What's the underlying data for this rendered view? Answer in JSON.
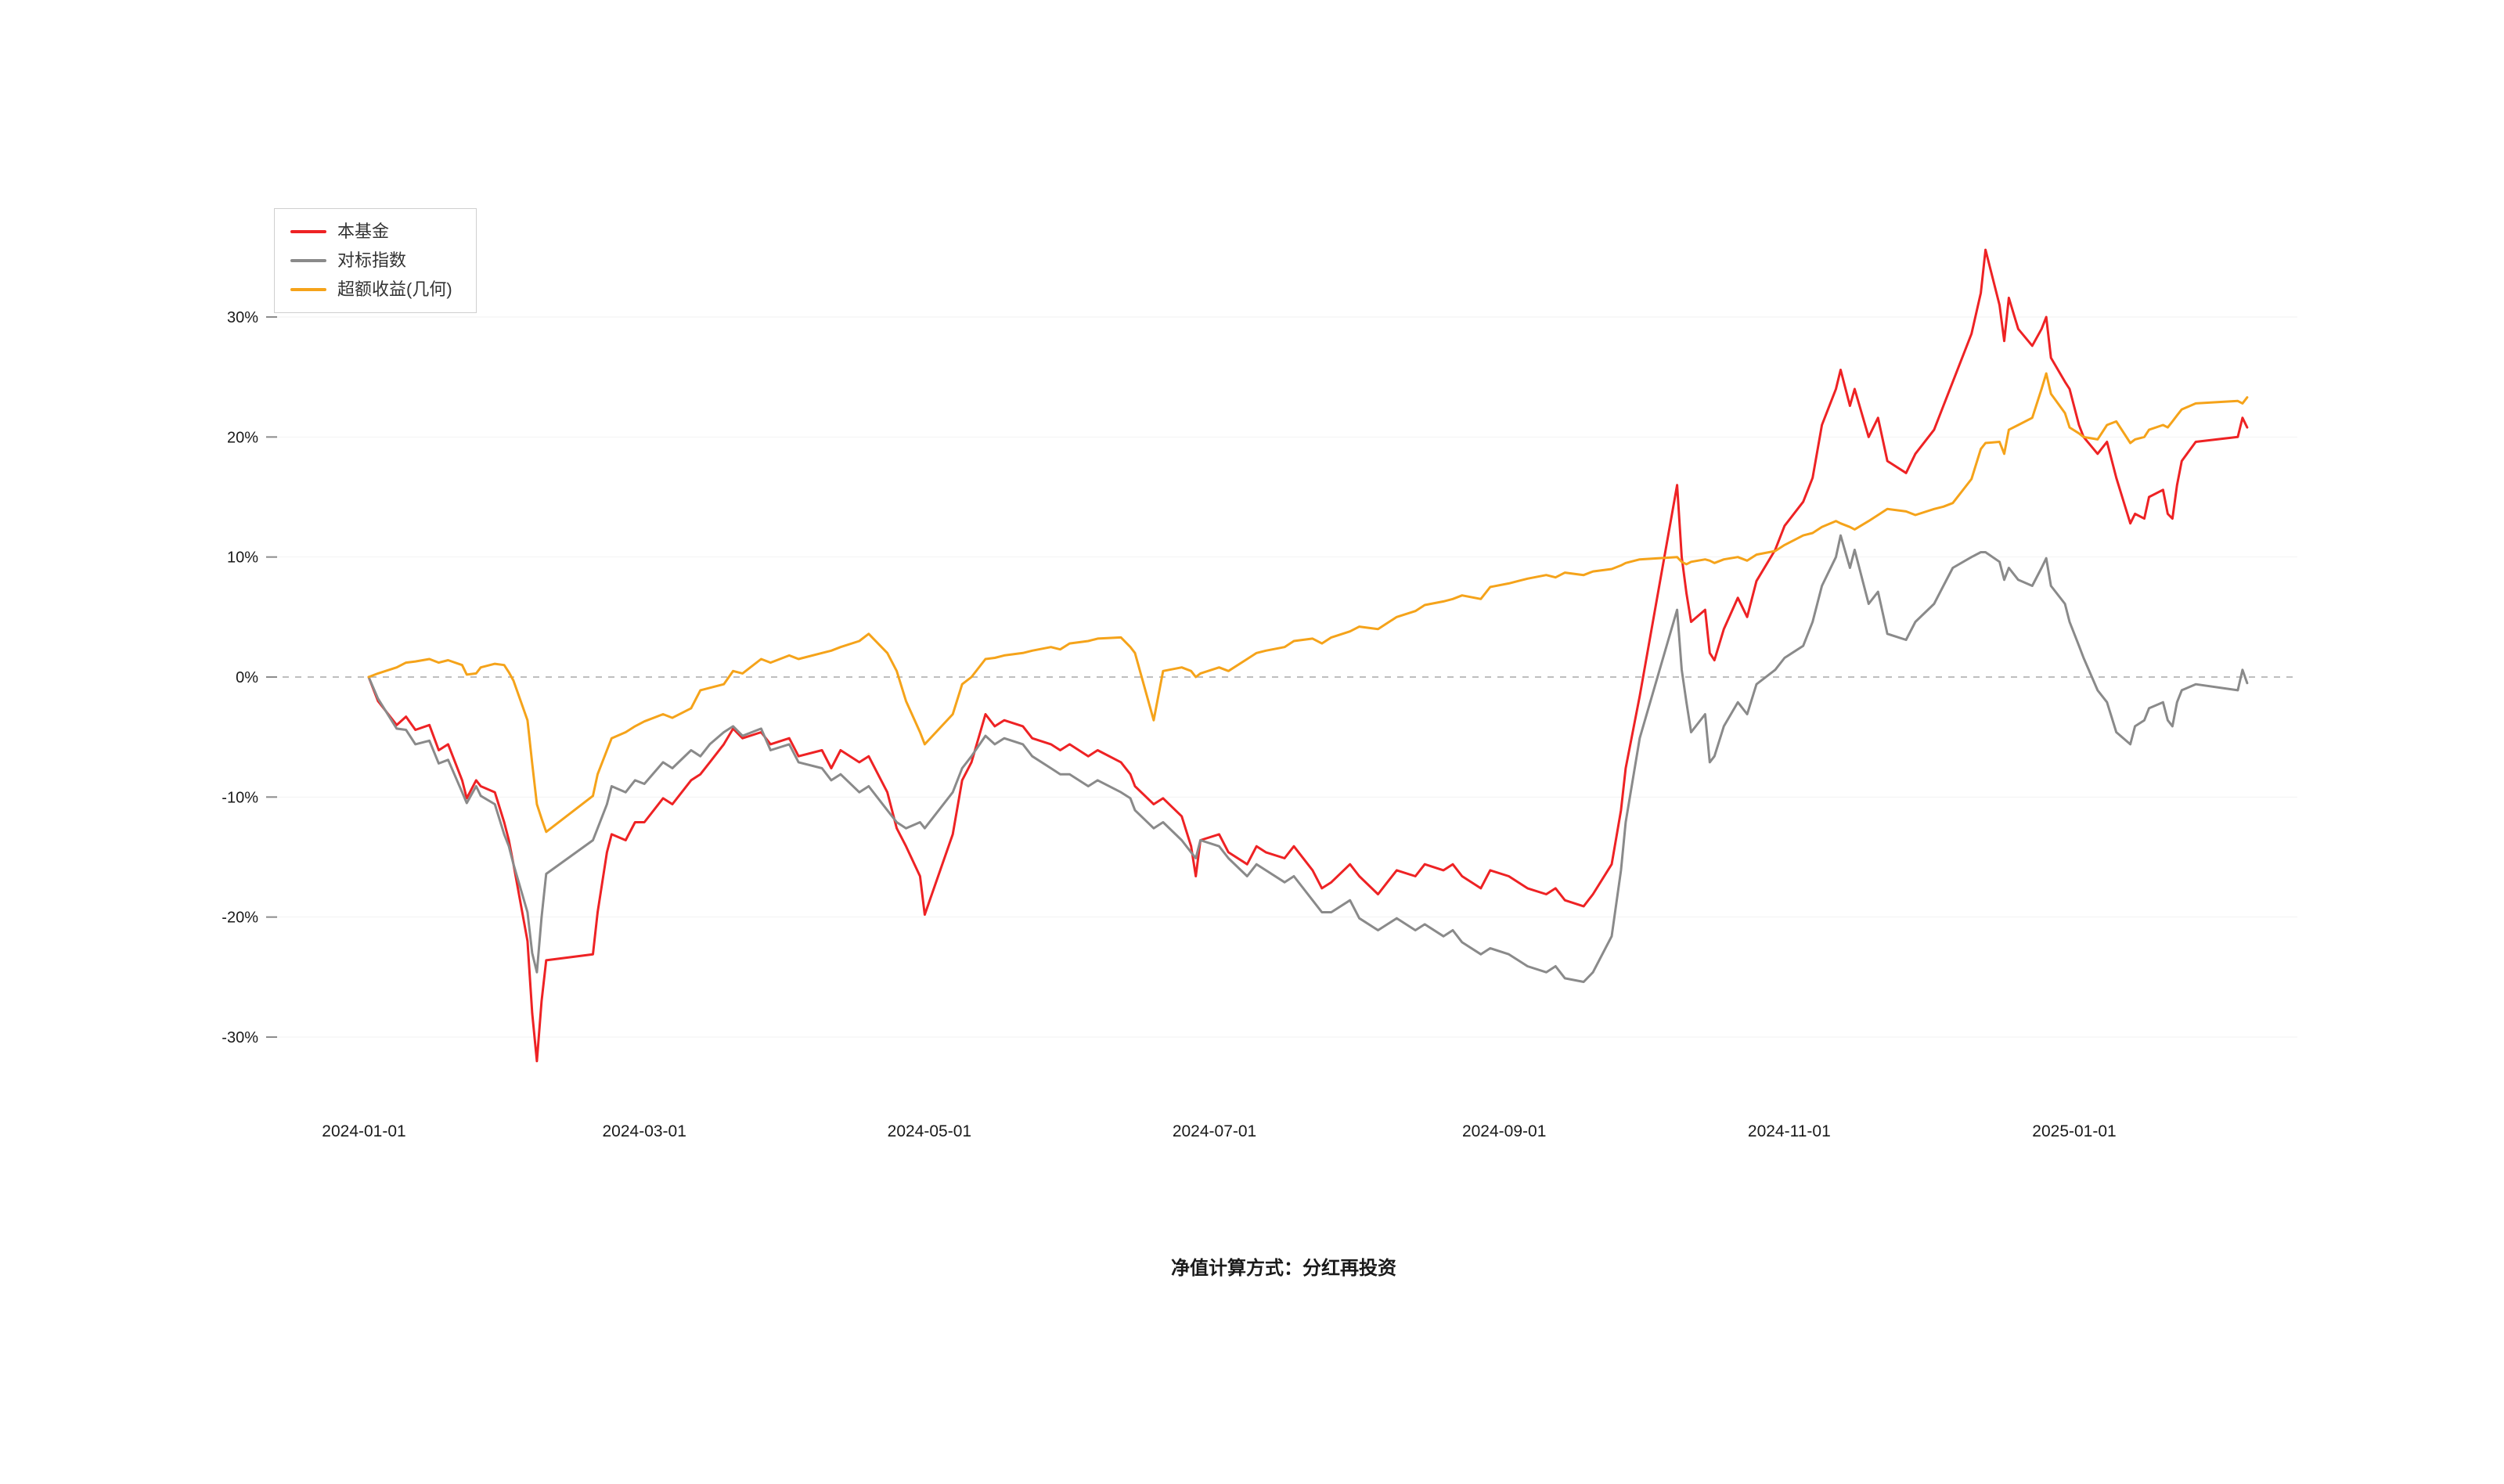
{
  "footer": {
    "note": "净值计算方式：分红再投资"
  },
  "chart_data": {
    "type": "line",
    "title": "",
    "xlabel": "",
    "ylabel": "",
    "legend_position": "top-left",
    "grid": "horizontal-light",
    "zero_line": "dashed-gray",
    "background": "#ffffff",
    "ylim": [
      -35,
      38
    ],
    "y_ticks": [
      30,
      20,
      10,
      0,
      -10,
      -20,
      -30
    ],
    "y_tick_labels": [
      "30%",
      "20%",
      "10%",
      "0%",
      "-10%",
      "-20%",
      "-30%"
    ],
    "x_ticks": [
      "2024-01-01",
      "2024-03-01",
      "2024-05-01",
      "2024-07-01",
      "2024-09-01",
      "2024-11-01",
      "2025-01-01"
    ],
    "dates": [
      "2024-01-02",
      "2024-01-04",
      "2024-01-08",
      "2024-01-10",
      "2024-01-12",
      "2024-01-15",
      "2024-01-17",
      "2024-01-19",
      "2024-01-22",
      "2024-01-23",
      "2024-01-25",
      "2024-01-26",
      "2024-01-29",
      "2024-01-31",
      "2024-02-01",
      "2024-02-02",
      "2024-02-05",
      "2024-02-06",
      "2024-02-07",
      "2024-02-08",
      "2024-02-09",
      "2024-02-19",
      "2024-02-20",
      "2024-02-22",
      "2024-02-23",
      "2024-02-26",
      "2024-02-28",
      "2024-03-01",
      "2024-03-05",
      "2024-03-07",
      "2024-03-11",
      "2024-03-13",
      "2024-03-15",
      "2024-03-18",
      "2024-03-20",
      "2024-03-22",
      "2024-03-26",
      "2024-03-28",
      "2024-04-01",
      "2024-04-03",
      "2024-04-08",
      "2024-04-10",
      "2024-04-12",
      "2024-04-16",
      "2024-04-18",
      "2024-04-22",
      "2024-04-24",
      "2024-04-26",
      "2024-04-29",
      "2024-04-30",
      "2024-05-06",
      "2024-05-08",
      "2024-05-10",
      "2024-05-13",
      "2024-05-15",
      "2024-05-17",
      "2024-05-21",
      "2024-05-23",
      "2024-05-27",
      "2024-05-29",
      "2024-05-31",
      "2024-06-04",
      "2024-06-06",
      "2024-06-11",
      "2024-06-13",
      "2024-06-14",
      "2024-06-18",
      "2024-06-20",
      "2024-06-24",
      "2024-06-26",
      "2024-06-27",
      "2024-06-28",
      "2024-07-02",
      "2024-07-04",
      "2024-07-08",
      "2024-07-10",
      "2024-07-12",
      "2024-07-16",
      "2024-07-18",
      "2024-07-22",
      "2024-07-24",
      "2024-07-26",
      "2024-07-30",
      "2024-08-01",
      "2024-08-05",
      "2024-08-07",
      "2024-08-09",
      "2024-08-13",
      "2024-08-15",
      "2024-08-19",
      "2024-08-21",
      "2024-08-23",
      "2024-08-27",
      "2024-08-29",
      "2024-09-02",
      "2024-09-04",
      "2024-09-06",
      "2024-09-10",
      "2024-09-12",
      "2024-09-14",
      "2024-09-18",
      "2024-09-20",
      "2024-09-24",
      "2024-09-26",
      "2024-09-27",
      "2024-09-30",
      "2024-10-08",
      "2024-10-09",
      "2024-10-10",
      "2024-10-11",
      "2024-10-14",
      "2024-10-15",
      "2024-10-16",
      "2024-10-18",
      "2024-10-21",
      "2024-10-23",
      "2024-10-25",
      "2024-10-29",
      "2024-10-31",
      "2024-11-04",
      "2024-11-06",
      "2024-11-08",
      "2024-11-11",
      "2024-11-12",
      "2024-11-14",
      "2024-11-15",
      "2024-11-18",
      "2024-11-20",
      "2024-11-22",
      "2024-11-26",
      "2024-11-28",
      "2024-12-02",
      "2024-12-04",
      "2024-12-06",
      "2024-12-10",
      "2024-12-12",
      "2024-12-13",
      "2024-12-16",
      "2024-12-17",
      "2024-12-18",
      "2024-12-20",
      "2024-12-23",
      "2024-12-25",
      "2024-12-26",
      "2024-12-27",
      "2024-12-30",
      "2024-12-31",
      "2025-01-02",
      "2025-01-03",
      "2025-01-06",
      "2025-01-08",
      "2025-01-10",
      "2025-01-13",
      "2025-01-14",
      "2025-01-16",
      "2025-01-17",
      "2025-01-20",
      "2025-01-21",
      "2025-01-22",
      "2025-01-23",
      "2025-01-24",
      "2025-01-27",
      "2025-02-05",
      "2025-02-06",
      "2025-02-07"
    ],
    "series": [
      {
        "name": "本基金",
        "color": "#ee2224",
        "values": [
          0,
          -2.0,
          -4.0,
          -3.3,
          -4.4,
          -4.0,
          -6.1,
          -5.6,
          -8.6,
          -10.1,
          -8.6,
          -9.1,
          -9.6,
          -12.1,
          -13.6,
          -15.6,
          -22.0,
          -28.0,
          -32.0,
          -27.0,
          -23.6,
          -23.1,
          -19.6,
          -14.6,
          -13.1,
          -13.6,
          -12.1,
          -12.1,
          -10.1,
          -10.6,
          -8.6,
          -8.1,
          -7.1,
          -5.6,
          -4.3,
          -5.1,
          -4.6,
          -5.6,
          -5.1,
          -6.6,
          -6.1,
          -7.6,
          -6.1,
          -7.1,
          -6.6,
          -9.6,
          -12.6,
          -14.1,
          -16.6,
          -19.8,
          -13.1,
          -8.6,
          -7.1,
          -3.1,
          -4.1,
          -3.6,
          -4.1,
          -5.1,
          -5.6,
          -6.1,
          -5.6,
          -6.6,
          -6.1,
          -7.1,
          -8.1,
          -9.1,
          -10.6,
          -10.1,
          -11.6,
          -14.1,
          -16.6,
          -13.6,
          -13.1,
          -14.6,
          -15.6,
          -14.1,
          -14.6,
          -15.1,
          -14.1,
          -16.1,
          -17.6,
          -17.1,
          -15.6,
          -16.6,
          -18.1,
          -17.1,
          -16.1,
          -16.6,
          -15.6,
          -16.1,
          -15.6,
          -16.6,
          -17.6,
          -16.1,
          -16.6,
          -17.1,
          -17.6,
          -18.1,
          -17.6,
          -18.6,
          -19.1,
          -18.1,
          -15.6,
          -11.1,
          -7.6,
          -1.6,
          16.0,
          10.0,
          7.0,
          4.6,
          5.6,
          2.0,
          1.4,
          4.0,
          6.6,
          5.0,
          8.0,
          10.6,
          12.6,
          14.6,
          16.6,
          21.0,
          24.0,
          25.6,
          22.6,
          24.0,
          20.0,
          21.6,
          18.0,
          17.0,
          18.6,
          20.6,
          22.6,
          24.6,
          28.6,
          32.0,
          35.6,
          31.0,
          28.0,
          31.6,
          29.0,
          27.6,
          29.0,
          30.0,
          26.6,
          24.6,
          24.0,
          21.0,
          20.0,
          18.6,
          19.6,
          16.6,
          12.8,
          13.6,
          13.2,
          15.0,
          15.6,
          13.6,
          13.2,
          16.0,
          18.0,
          19.6,
          20.0,
          21.6,
          20.8
        ]
      },
      {
        "name": "对标指数",
        "color": "#8a8a8a",
        "values": [
          0,
          -1.8,
          -4.3,
          -4.4,
          -5.6,
          -5.3,
          -7.2,
          -6.9,
          -9.6,
          -10.5,
          -9.1,
          -9.9,
          -10.6,
          -13.1,
          -14.1,
          -15.6,
          -19.6,
          -23.0,
          -24.6,
          -20.0,
          -16.4,
          -13.6,
          -12.6,
          -10.6,
          -9.1,
          -9.6,
          -8.6,
          -8.9,
          -7.1,
          -7.6,
          -6.1,
          -6.6,
          -5.6,
          -4.6,
          -4.1,
          -4.9,
          -4.3,
          -6.1,
          -5.6,
          -7.1,
          -7.6,
          -8.6,
          -8.1,
          -9.6,
          -9.1,
          -11.1,
          -12.1,
          -12.6,
          -12.1,
          -12.6,
          -9.6,
          -7.6,
          -6.6,
          -4.9,
          -5.6,
          -5.1,
          -5.6,
          -6.6,
          -7.6,
          -8.1,
          -8.1,
          -9.1,
          -8.6,
          -9.6,
          -10.1,
          -11.1,
          -12.6,
          -12.1,
          -13.6,
          -14.6,
          -15.1,
          -13.6,
          -14.1,
          -15.1,
          -16.6,
          -15.6,
          -16.1,
          -17.1,
          -16.6,
          -18.6,
          -19.6,
          -19.6,
          -18.6,
          -20.1,
          -21.1,
          -20.6,
          -20.1,
          -21.1,
          -20.6,
          -21.6,
          -21.1,
          -22.1,
          -23.1,
          -22.6,
          -23.1,
          -23.6,
          -24.1,
          -24.6,
          -24.1,
          -25.1,
          -25.4,
          -24.6,
          -21.6,
          -16.1,
          -12.1,
          -5.1,
          5.6,
          0.6,
          -2.1,
          -4.6,
          -3.1,
          -7.1,
          -6.6,
          -4.1,
          -2.1,
          -3.1,
          -0.6,
          0.6,
          1.6,
          2.6,
          4.6,
          7.6,
          10.0,
          11.8,
          9.1,
          10.6,
          6.1,
          7.1,
          3.6,
          3.1,
          4.6,
          6.1,
          7.6,
          9.1,
          10.0,
          10.4,
          10.4,
          9.6,
          8.1,
          9.1,
          8.1,
          7.6,
          9.1,
          9.9,
          7.6,
          6.1,
          4.6,
          2.6,
          1.6,
          -1.1,
          -2.1,
          -4.6,
          -5.6,
          -4.1,
          -3.6,
          -2.6,
          -2.1,
          -3.6,
          -4.1,
          -2.1,
          -1.1,
          -0.6,
          -1.1,
          0.6,
          -0.5
        ]
      },
      {
        "name": "超额收益(几何)",
        "color": "#f5a31a",
        "values": [
          0,
          0.3,
          0.8,
          1.2,
          1.3,
          1.5,
          1.2,
          1.4,
          1.0,
          0.2,
          0.3,
          0.8,
          1.1,
          1.0,
          0.4,
          -0.3,
          -3.6,
          -7.2,
          -10.6,
          -11.8,
          -12.9,
          -9.9,
          -8.1,
          -6.1,
          -5.1,
          -4.6,
          -4.1,
          -3.7,
          -3.1,
          -3.4,
          -2.6,
          -1.1,
          -0.9,
          -0.6,
          0.5,
          0.3,
          1.5,
          1.2,
          1.8,
          1.5,
          2.0,
          2.2,
          2.5,
          3.0,
          3.6,
          2.0,
          0.5,
          -2.0,
          -4.6,
          -5.6,
          -3.1,
          -0.6,
          0.0,
          1.5,
          1.6,
          1.8,
          2.0,
          2.2,
          2.5,
          2.3,
          2.8,
          3.0,
          3.2,
          3.3,
          2.5,
          2.0,
          -3.6,
          0.5,
          0.8,
          0.5,
          0.0,
          0.3,
          0.8,
          0.5,
          1.5,
          2.0,
          2.2,
          2.5,
          3.0,
          3.2,
          2.8,
          3.3,
          3.8,
          4.2,
          4.0,
          4.5,
          5.0,
          5.5,
          6.0,
          6.3,
          6.5,
          6.8,
          6.5,
          7.5,
          7.8,
          8.0,
          8.2,
          8.5,
          8.3,
          8.7,
          8.5,
          8.8,
          9.0,
          9.3,
          9.5,
          9.8,
          10.0,
          9.6,
          9.4,
          9.6,
          9.8,
          9.7,
          9.5,
          9.8,
          10.0,
          9.7,
          10.2,
          10.5,
          11.0,
          11.8,
          12.0,
          12.5,
          13.0,
          12.8,
          12.5,
          12.3,
          13.0,
          13.5,
          14.0,
          13.8,
          13.5,
          14.0,
          14.2,
          14.5,
          16.5,
          19.0,
          19.5,
          19.6,
          18.6,
          20.6,
          21.0,
          21.6,
          24.0,
          25.3,
          23.6,
          22.0,
          20.8,
          20.3,
          20.0,
          19.8,
          21.0,
          21.3,
          19.5,
          19.8,
          20.0,
          20.6,
          21.0,
          20.8,
          21.3,
          21.8,
          22.3,
          22.8,
          23.0,
          22.8,
          23.3
        ]
      }
    ]
  }
}
